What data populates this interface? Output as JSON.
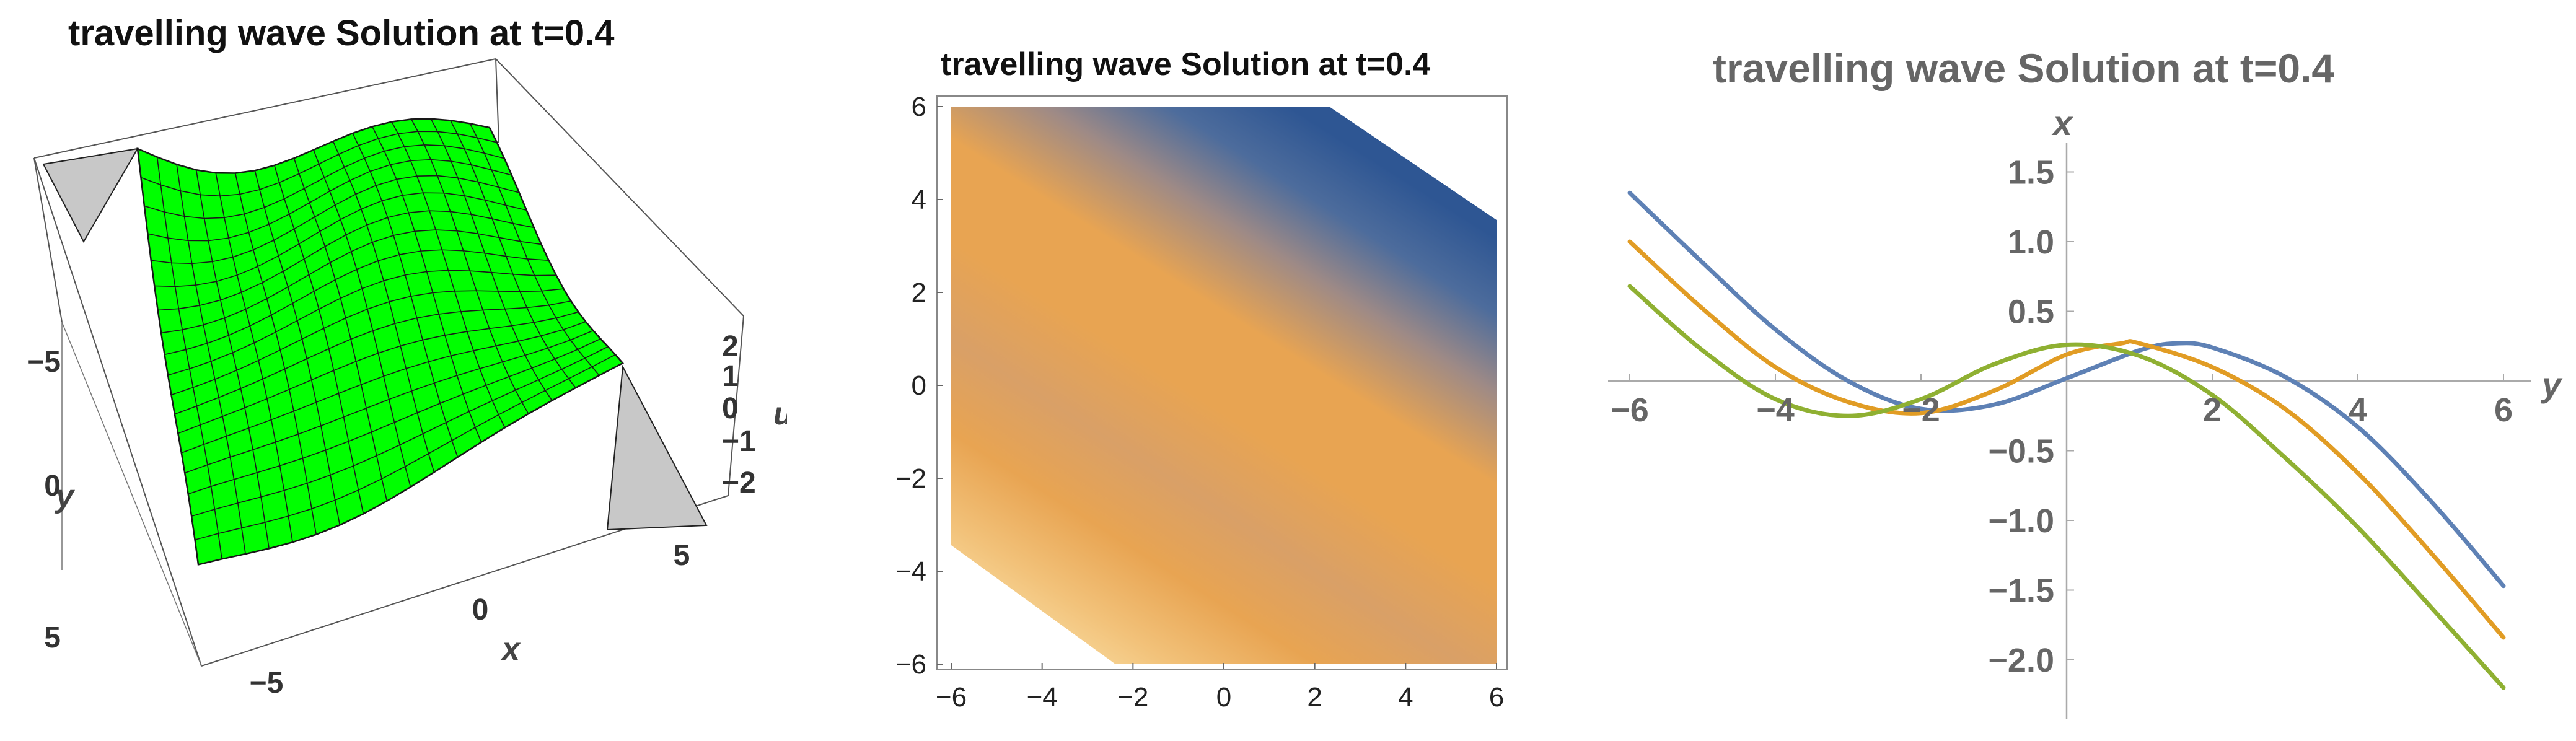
{
  "chart_data": [
    {
      "type": "surface3d",
      "title": "travelling wave Solution at t=0.4",
      "xlabel": "x",
      "ylabel": "y",
      "zlabel": "u",
      "x_ticks": [
        "−5",
        "0",
        "5"
      ],
      "y_ticks": [
        "−5",
        "0",
        "5"
      ],
      "z_ticks": [
        "2",
        "1",
        "0",
        "−1",
        "−2"
      ],
      "xlim": [
        -6,
        6
      ],
      "ylim": [
        -6,
        6
      ],
      "zlim": [
        -2,
        2
      ],
      "surface_color": "#00ff00",
      "mesh_color": "#1a1a1a",
      "clipped_region_color": "#c8c8c8",
      "surface_profile": [
        {
          "s": -6,
          "u": 1.45
        },
        {
          "s": -4,
          "u": 1.2
        },
        {
          "s": -2,
          "u": 0.7
        },
        {
          "s": 0,
          "u": 0.2
        },
        {
          "s": 2,
          "u": -0.3
        },
        {
          "s": 4,
          "u": -0.9
        },
        {
          "s": 6,
          "u": -1.5
        }
      ]
    },
    {
      "type": "heatmap",
      "title": "travelling wave Solution at t=0.4",
      "x_ticks": [
        "−6",
        "−4",
        "−2",
        "0",
        "2",
        "4",
        "6"
      ],
      "y_ticks": [
        "6",
        "4",
        "2",
        "0",
        "−2",
        "−4",
        "−6"
      ],
      "xlim": [
        -6,
        6
      ],
      "ylim": [
        -6,
        6
      ],
      "colors": {
        "high": "#2e5693",
        "mid": "#e8a452",
        "low": "#fff3c2"
      },
      "clipped_corners": "top-right and bottom-left"
    },
    {
      "type": "line",
      "title": "travelling wave Solution at t=0.4",
      "xlabel": "y",
      "ylabel": "x",
      "x_ticks": [
        "−6",
        "−4",
        "−2",
        "2",
        "4",
        "6"
      ],
      "y_ticks": [
        "1.5",
        "1.0",
        "0.5",
        "−0.5",
        "−1.0",
        "−1.5",
        "−2.0"
      ],
      "xlim": [
        -6,
        6
      ],
      "ylim": [
        -2.4,
        1.75
      ],
      "grid": false,
      "series": [
        {
          "color": "#5e81b5",
          "points": [
            [
              -6,
              1.35
            ],
            [
              -5,
              0.85
            ],
            [
              -4,
              0.37
            ],
            [
              -3,
              0.0
            ],
            [
              -2,
              -0.2
            ],
            [
              -1,
              -0.17
            ],
            [
              0,
              0.02
            ],
            [
              1,
              0.22
            ],
            [
              1.5,
              0.27
            ],
            [
              2,
              0.24
            ],
            [
              3,
              0.03
            ],
            [
              4,
              -0.33
            ],
            [
              5,
              -0.86
            ],
            [
              6,
              -1.47
            ]
          ]
        },
        {
          "color": "#e19c24",
          "points": [
            [
              -6,
              1.0
            ],
            [
              -5,
              0.52
            ],
            [
              -4,
              0.1
            ],
            [
              -3,
              -0.15
            ],
            [
              -2,
              -0.23
            ],
            [
              -1,
              -0.07
            ],
            [
              0,
              0.19
            ],
            [
              0.75,
              0.27
            ],
            [
              1,
              0.27
            ],
            [
              2,
              0.1
            ],
            [
              3,
              -0.2
            ],
            [
              4,
              -0.66
            ],
            [
              5,
              -1.23
            ],
            [
              6,
              -1.84
            ]
          ]
        },
        {
          "color": "#8fb032",
          "points": [
            [
              -6,
              0.68
            ],
            [
              -5,
              0.22
            ],
            [
              -4,
              -0.13
            ],
            [
              -3,
              -0.25
            ],
            [
              -2,
              -0.13
            ],
            [
              -1,
              0.12
            ],
            [
              0,
              0.26
            ],
            [
              1,
              0.18
            ],
            [
              2,
              -0.1
            ],
            [
              3,
              -0.55
            ],
            [
              4,
              -1.05
            ],
            [
              5,
              -1.62
            ],
            [
              6,
              -2.2
            ]
          ]
        }
      ]
    }
  ]
}
